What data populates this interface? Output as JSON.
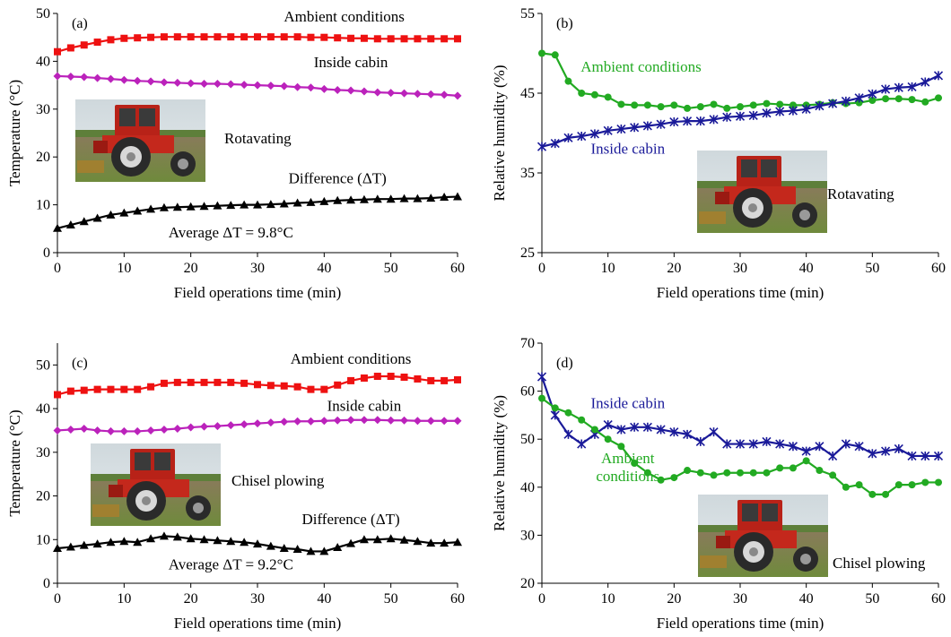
{
  "chart_data": [
    {
      "panel_label": "(a)",
      "type": "line",
      "xlabel": "Field operations time (min)",
      "ylabel": "Temperature (°C)",
      "xlim": [
        0,
        60
      ],
      "ylim": [
        0,
        50
      ],
      "xticks": [
        0,
        10,
        20,
        30,
        40,
        50,
        60
      ],
      "yticks": [
        0,
        10,
        20,
        30,
        40,
        50
      ],
      "x": [
        0,
        2,
        4,
        6,
        8,
        10,
        12,
        14,
        16,
        18,
        20,
        22,
        24,
        26,
        28,
        30,
        32,
        34,
        36,
        38,
        40,
        42,
        44,
        46,
        48,
        50,
        52,
        54,
        56,
        58,
        60
      ],
      "photo_label": "Rotavating",
      "annotations": [
        {
          "text": "Average ΔT = 9.8°C",
          "x": 26,
          "y": 3.2
        }
      ],
      "series": [
        {
          "name": "Ambient conditions",
          "color": "#ee1111",
          "marker": "square",
          "label_pos": [
            43,
            48.3
          ],
          "values": [
            42.0,
            42.8,
            43.4,
            44.0,
            44.5,
            44.8,
            44.9,
            45.0,
            45.1,
            45.1,
            45.1,
            45.1,
            45.1,
            45.1,
            45.1,
            45.1,
            45.1,
            45.1,
            45.1,
            45.0,
            45.0,
            44.9,
            44.8,
            44.8,
            44.7,
            44.7,
            44.7,
            44.7,
            44.7,
            44.7,
            44.7
          ]
        },
        {
          "name": "Inside cabin",
          "color": "#bb22bb",
          "marker": "diamond",
          "label_pos": [
            44,
            38.8
          ],
          "values": [
            36.9,
            36.8,
            36.7,
            36.5,
            36.3,
            36.1,
            35.9,
            35.8,
            35.6,
            35.5,
            35.4,
            35.3,
            35.3,
            35.2,
            35.1,
            35.0,
            34.9,
            34.8,
            34.6,
            34.5,
            34.2,
            34.0,
            33.9,
            33.7,
            33.5,
            33.4,
            33.3,
            33.2,
            33.1,
            33.0,
            32.8
          ]
        },
        {
          "name": "Difference (ΔT)",
          "color": "#000000",
          "marker": "triangle",
          "label_pos": [
            42,
            14.5
          ],
          "values": [
            5.1,
            5.8,
            6.5,
            7.2,
            7.9,
            8.3,
            8.7,
            9.1,
            9.4,
            9.5,
            9.6,
            9.7,
            9.8,
            9.9,
            10.0,
            10.0,
            10.1,
            10.2,
            10.4,
            10.5,
            10.7,
            10.9,
            11.0,
            11.1,
            11.2,
            11.2,
            11.3,
            11.3,
            11.4,
            11.6,
            11.7
          ]
        }
      ]
    },
    {
      "panel_label": "(b)",
      "type": "line",
      "xlabel": "Field operations time (min)",
      "ylabel": "Relative humidity (%)",
      "xlim": [
        0,
        60
      ],
      "ylim": [
        25,
        55
      ],
      "xticks": [
        0,
        10,
        20,
        30,
        40,
        50,
        60
      ],
      "yticks": [
        25,
        35,
        45,
        55
      ],
      "x": [
        0,
        2,
        4,
        6,
        8,
        10,
        12,
        14,
        16,
        18,
        20,
        22,
        24,
        26,
        28,
        30,
        32,
        34,
        36,
        38,
        40,
        42,
        44,
        46,
        48,
        50,
        52,
        54,
        56,
        58,
        60
      ],
      "photo_label": "Rotavating",
      "annotations": [],
      "series": [
        {
          "name": "Ambient conditions",
          "color": "#22aa22",
          "marker": "circle",
          "label_pos": [
            15,
            47.7
          ],
          "values": [
            50.0,
            49.8,
            46.5,
            45.0,
            44.8,
            44.5,
            43.6,
            43.5,
            43.5,
            43.3,
            43.5,
            43.1,
            43.3,
            43.6,
            43.1,
            43.3,
            43.5,
            43.7,
            43.6,
            43.5,
            43.5,
            43.6,
            43.8,
            43.7,
            43.8,
            44.1,
            44.3,
            44.3,
            44.2,
            43.9,
            44.4
          ]
        },
        {
          "name": "Inside cabin",
          "color": "#1a1a99",
          "marker": "star",
          "label_pos": [
            13,
            37.4
          ],
          "values": [
            38.3,
            38.7,
            39.4,
            39.6,
            39.9,
            40.3,
            40.5,
            40.7,
            40.9,
            41.1,
            41.4,
            41.5,
            41.5,
            41.7,
            42.0,
            42.1,
            42.2,
            42.5,
            42.7,
            42.8,
            43.0,
            43.4,
            43.7,
            44.0,
            44.4,
            44.9,
            45.5,
            45.7,
            45.8,
            46.4,
            47.2
          ]
        }
      ]
    },
    {
      "panel_label": "(c)",
      "type": "line",
      "xlabel": "Field operations time (min)",
      "ylabel": "Temperature (°C)",
      "xlim": [
        0,
        60
      ],
      "ylim": [
        0,
        55
      ],
      "xticks": [
        0,
        10,
        20,
        30,
        40,
        50,
        60
      ],
      "yticks": [
        0,
        10,
        20,
        30,
        40,
        50
      ],
      "x": [
        0,
        2,
        4,
        6,
        8,
        10,
        12,
        14,
        16,
        18,
        20,
        22,
        24,
        26,
        28,
        30,
        32,
        34,
        36,
        38,
        40,
        42,
        44,
        46,
        48,
        50,
        52,
        54,
        56,
        58,
        60
      ],
      "photo_label": "Chisel plowing",
      "annotations": [
        {
          "text": "Average ΔT = 9.2°C",
          "x": 26,
          "y": 3.2
        }
      ],
      "series": [
        {
          "name": "Ambient conditions",
          "color": "#ee1111",
          "marker": "square",
          "label_pos": [
            44,
            50.3
          ],
          "values": [
            43.2,
            44.0,
            44.2,
            44.4,
            44.4,
            44.4,
            44.4,
            45.0,
            45.8,
            46.0,
            46.0,
            46.0,
            46.0,
            46.0,
            45.8,
            45.5,
            45.3,
            45.2,
            45.0,
            44.4,
            44.4,
            45.4,
            46.4,
            47.0,
            47.4,
            47.4,
            47.2,
            46.8,
            46.4,
            46.4,
            46.6
          ]
        },
        {
          "name": "Inside cabin",
          "color": "#bb22bb",
          "marker": "diamond",
          "label_pos": [
            46,
            39.5
          ],
          "values": [
            35.0,
            35.2,
            35.4,
            35.0,
            34.8,
            34.8,
            34.8,
            35.0,
            35.2,
            35.4,
            35.7,
            35.9,
            36.0,
            36.2,
            36.4,
            36.6,
            36.8,
            37.0,
            37.1,
            37.1,
            37.2,
            37.3,
            37.4,
            37.4,
            37.4,
            37.3,
            37.3,
            37.2,
            37.2,
            37.2,
            37.2
          ]
        },
        {
          "name": "Difference (ΔT)",
          "color": "#000000",
          "marker": "triangle",
          "label_pos": [
            44,
            13.5
          ],
          "values": [
            8.0,
            8.3,
            8.7,
            9.0,
            9.4,
            9.6,
            9.4,
            10.2,
            10.8,
            10.6,
            10.2,
            10.0,
            9.8,
            9.6,
            9.4,
            9.0,
            8.5,
            8.0,
            7.8,
            7.3,
            7.3,
            8.2,
            9.1,
            10.0,
            10.0,
            10.2,
            9.9,
            9.6,
            9.2,
            9.2,
            9.4
          ]
        }
      ]
    },
    {
      "panel_label": "(d)",
      "type": "line",
      "xlabel": "Field operations time (min)",
      "ylabel": "Relative humidity (%)",
      "xlim": [
        0,
        60
      ],
      "ylim": [
        20,
        70
      ],
      "xticks": [
        0,
        10,
        20,
        30,
        40,
        50,
        60
      ],
      "yticks": [
        20,
        30,
        40,
        50,
        60,
        70
      ],
      "x": [
        0,
        2,
        4,
        6,
        8,
        10,
        12,
        14,
        16,
        18,
        20,
        22,
        24,
        26,
        28,
        30,
        32,
        34,
        36,
        38,
        40,
        42,
        44,
        46,
        48,
        50,
        52,
        54,
        56,
        58,
        60
      ],
      "photo_label": "Chisel plowing",
      "annotations": [],
      "series": [
        {
          "name": "Inside cabin",
          "color": "#1a1a99",
          "marker": "star",
          "label_pos": [
            13,
            56.5
          ],
          "values": [
            63.0,
            55.0,
            51.0,
            49.0,
            51.0,
            53.0,
            52.0,
            52.5,
            52.5,
            52.0,
            51.5,
            51.0,
            49.5,
            51.5,
            49.0,
            49.0,
            49.0,
            49.5,
            49.0,
            48.5,
            47.5,
            48.5,
            46.5,
            49.0,
            48.5,
            47.0,
            47.5,
            48.0,
            46.5,
            46.5,
            46.5
          ]
        },
        {
          "name": "Ambient conditions",
          "color": "#22aa22",
          "marker": "circle",
          "label_pos": [
            13,
            45.0
          ],
          "name_lines": [
            "Ambient",
            "conditions"
          ],
          "values": [
            58.5,
            56.5,
            55.5,
            54.0,
            52.0,
            50.0,
            48.5,
            45.0,
            43.0,
            41.5,
            42.0,
            43.5,
            43.0,
            42.5,
            43.0,
            43.0,
            43.0,
            43.0,
            44.0,
            44.0,
            45.5,
            43.5,
            42.5,
            40.0,
            40.5,
            38.5,
            38.5,
            40.5,
            40.5,
            41.0,
            41.0
          ]
        }
      ]
    }
  ]
}
